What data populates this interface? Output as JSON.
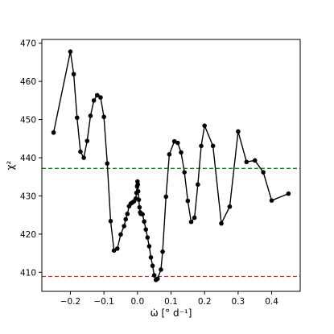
{
  "chart_data": {
    "type": "line",
    "title": "",
    "xlabel": "ω̇ [° d⁻¹]",
    "ylabel": "χ²",
    "xlim": [
      -0.285,
      0.485
    ],
    "ylim": [
      405.0,
      471.0
    ],
    "xticks": [
      -0.2,
      -0.1,
      0.0,
      0.1,
      0.2,
      0.3,
      0.4
    ],
    "xtick_labels": [
      "−0.2",
      "−0.1",
      "0.0",
      "0.1",
      "0.2",
      "0.3",
      "0.4"
    ],
    "yticks": [
      410,
      420,
      430,
      440,
      450,
      460,
      470
    ],
    "ytick_labels": [
      "410",
      "420",
      "430",
      "440",
      "450",
      "460",
      "470"
    ],
    "grid": false,
    "colors": {
      "series": "#000000",
      "line_upper": "#008000",
      "line_lower": "#d62728"
    },
    "hlines": [
      {
        "y": 437.2,
        "color": "#008000",
        "style": "dashed"
      },
      {
        "y": 408.9,
        "color": "#d62728",
        "style": "dashed"
      }
    ],
    "series": [
      {
        "x": [
          -0.25,
          -0.2,
          -0.19,
          -0.18,
          -0.17,
          -0.16,
          -0.15,
          -0.14,
          -0.13,
          -0.12,
          -0.11,
          -0.1,
          -0.09,
          -0.08,
          -0.07,
          -0.06,
          -0.05,
          -0.04,
          -0.035,
          -0.03,
          -0.025,
          -0.02,
          -0.015,
          -0.01,
          -0.005,
          -0.003,
          -0.001,
          0.0,
          0.001,
          0.002,
          0.004,
          0.006,
          0.008,
          0.01,
          0.015,
          0.02,
          0.025,
          0.03,
          0.035,
          0.04,
          0.045,
          0.05,
          0.055,
          0.06,
          0.07,
          0.075,
          0.085,
          0.095,
          0.11,
          0.12,
          0.13,
          0.14,
          0.15,
          0.16,
          0.17,
          0.18,
          0.19,
          0.2,
          0.225,
          0.25,
          0.275,
          0.3,
          0.325,
          0.35,
          0.375,
          0.4,
          0.45
        ],
        "y": [
          446.6,
          467.8,
          461.9,
          450.5,
          441.6,
          440.0,
          444.4,
          451.0,
          455.0,
          456.4,
          455.8,
          450.7,
          438.5,
          423.4,
          415.7,
          416.2,
          419.9,
          422.1,
          423.9,
          425.3,
          427.3,
          428.0,
          428.3,
          428.6,
          429.3,
          430.8,
          432.5,
          433.8,
          433.0,
          431.2,
          429.0,
          427.0,
          425.7,
          425.3,
          425.2,
          423.3,
          421.2,
          419.1,
          416.8,
          413.9,
          411.7,
          409.2,
          408.0,
          408.3,
          410.7,
          415.4,
          429.8,
          440.9,
          444.3,
          443.9,
          441.4,
          436.2,
          428.7,
          423.2,
          424.3,
          433.0,
          443.1,
          448.4,
          443.1,
          422.8,
          427.2,
          446.9,
          438.9,
          439.3,
          436.2,
          428.8,
          430.6
        ]
      }
    ]
  }
}
